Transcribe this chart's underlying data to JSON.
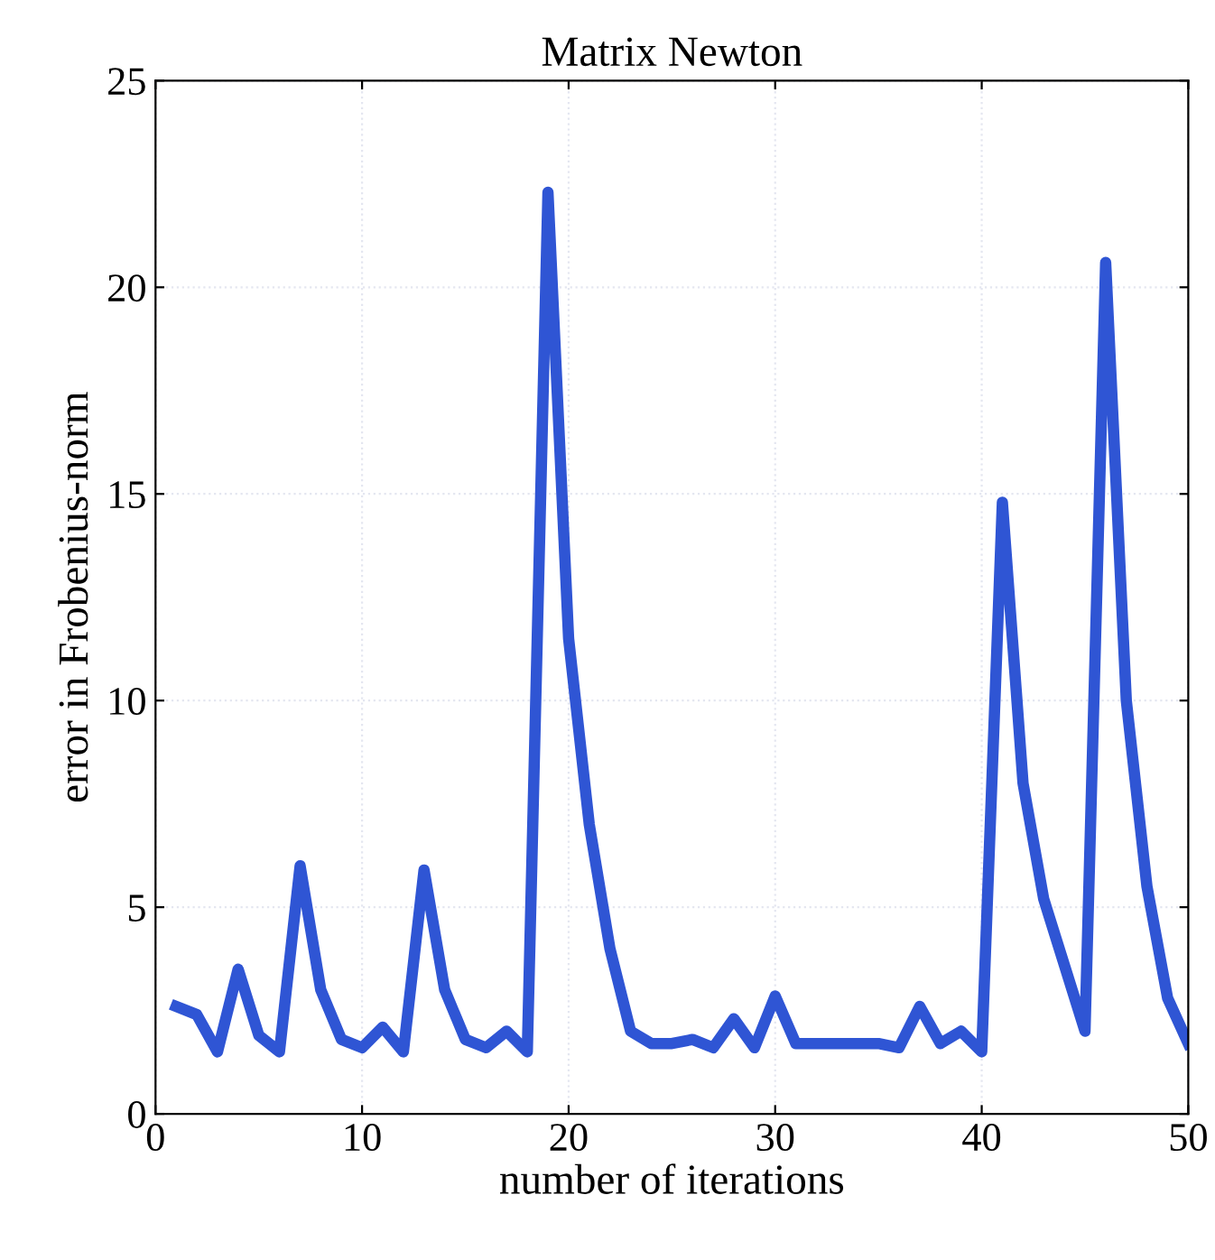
{
  "chart_data": {
    "type": "line",
    "title": "Matrix Newton",
    "xlabel": "number of iterations",
    "ylabel": "error in Frobenius-norm",
    "x": [
      1,
      2,
      3,
      4,
      5,
      6,
      7,
      8,
      9,
      10,
      11,
      12,
      13,
      14,
      15,
      16,
      17,
      18,
      19,
      20,
      21,
      22,
      23,
      24,
      25,
      26,
      27,
      28,
      29,
      30,
      31,
      32,
      33,
      34,
      35,
      36,
      37,
      38,
      39,
      40,
      41,
      42,
      43,
      44,
      45,
      46,
      47,
      48,
      49,
      50
    ],
    "series": [
      {
        "color": "#2f55d4",
        "values": [
          2.6,
          2.4,
          1.5,
          3.5,
          1.9,
          1.5,
          6.0,
          3.0,
          1.8,
          1.6,
          2.1,
          1.5,
          5.9,
          3.0,
          1.8,
          1.6,
          2.0,
          1.5,
          22.3,
          11.5,
          7.0,
          4.0,
          2.0,
          1.7,
          1.7,
          1.8,
          1.6,
          2.3,
          1.6,
          2.85,
          1.7,
          1.7,
          1.7,
          1.7,
          1.7,
          1.6,
          2.6,
          1.7,
          2.0,
          1.5,
          14.8,
          8.0,
          5.2,
          3.6,
          2.0,
          20.6,
          10.0,
          5.5,
          2.8,
          1.7
        ]
      }
    ],
    "xlim": [
      0,
      50
    ],
    "xticks": [
      0,
      10,
      20,
      30,
      40,
      50
    ],
    "ylim": [
      0,
      25
    ],
    "yticks": [
      0,
      5,
      10,
      15,
      20,
      25
    ],
    "grid": true,
    "marker": "none",
    "line_style": "solid"
  }
}
